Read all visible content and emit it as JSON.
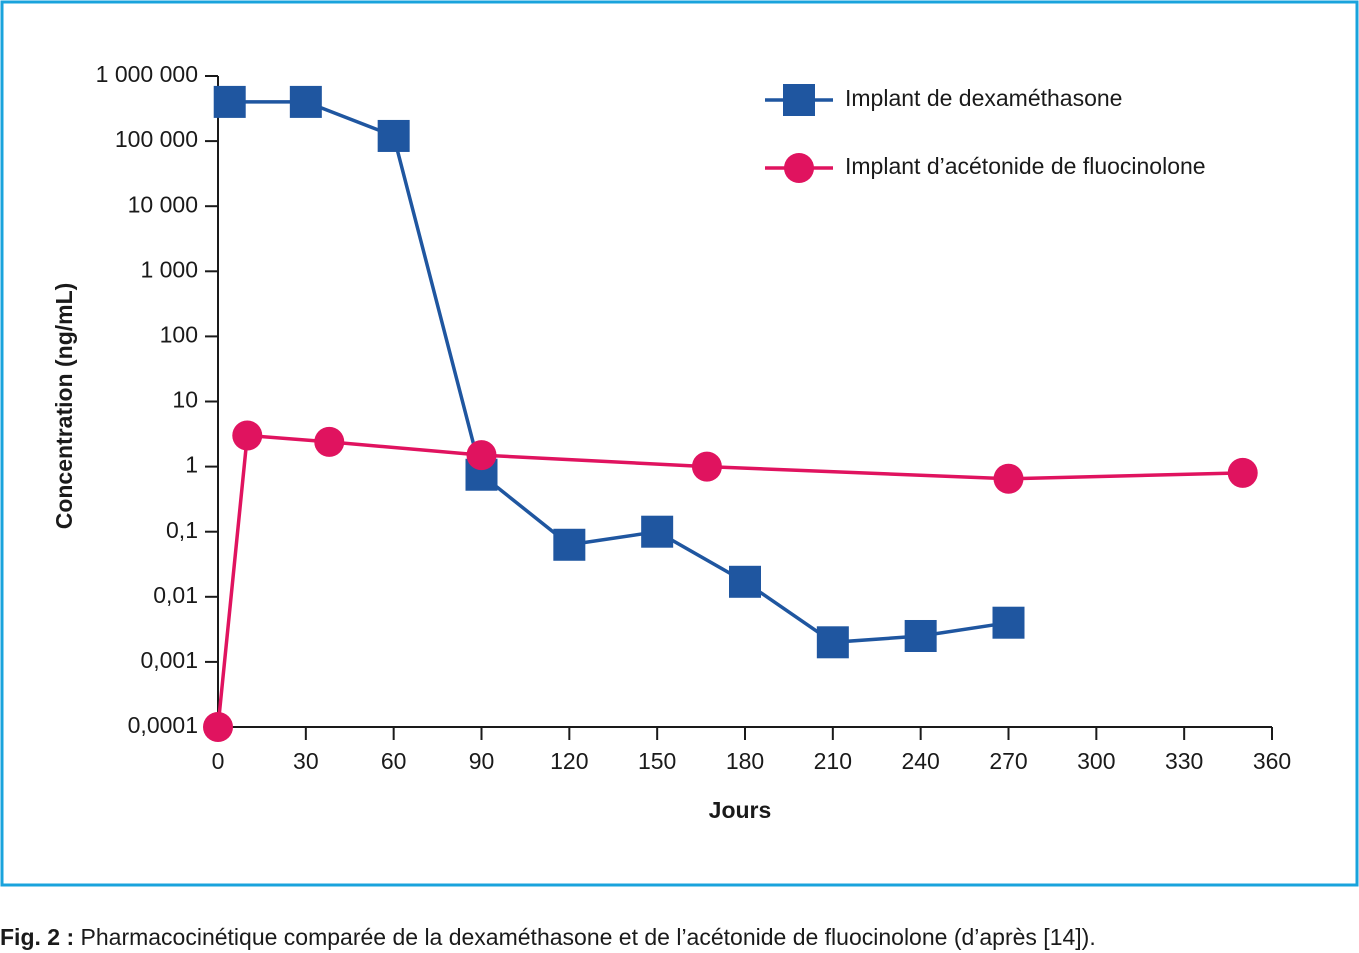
{
  "chart_data": {
    "type": "line",
    "x_label": "Jours",
    "y_label": "Concentration (ng/mL)",
    "log_y": true,
    "xlim": [
      0,
      360
    ],
    "xticks": [
      0,
      30,
      60,
      90,
      120,
      150,
      180,
      210,
      240,
      270,
      300,
      330,
      360
    ],
    "ylim": [
      0.0001,
      1000000
    ],
    "yticks": [
      {
        "value": 0.0001,
        "label": "0,0001"
      },
      {
        "value": 0.001,
        "label": "0,001"
      },
      {
        "value": 0.01,
        "label": "0,01"
      },
      {
        "value": 0.1,
        "label": "0,1"
      },
      1,
      10,
      100,
      {
        "value": 1000,
        "label": "1 000"
      },
      {
        "value": 10000,
        "label": "10 000"
      },
      {
        "value": 100000,
        "label": "100 000"
      },
      {
        "value": 1000000,
        "label": "1 000 000"
      }
    ],
    "legend": "top-right",
    "series": [
      {
        "name": "Implant de dexaméthasone",
        "color": "#1f56a0",
        "marker": "square",
        "x": [
          4,
          30,
          60,
          90,
          120,
          150,
          180,
          210,
          240,
          270
        ],
        "values": [
          400000,
          400000,
          120000,
          0.75,
          0.063,
          0.1,
          0.017,
          0.002,
          0.0025,
          0.004
        ]
      },
      {
        "name": "Implant d’acétonide de fluocinolone",
        "color": "#e0135f",
        "marker": "circle",
        "x": [
          0,
          10,
          38,
          90,
          167,
          270,
          350
        ],
        "values": [
          0.0001,
          3,
          2.4,
          1.5,
          1,
          0.65,
          0.8
        ]
      }
    ]
  },
  "caption": {
    "label": "Fig. 2 :",
    "text": "Pharmacocinétique comparée de la dexaméthasone et de l’acétonide de fluocinolone (d’après [14])."
  }
}
